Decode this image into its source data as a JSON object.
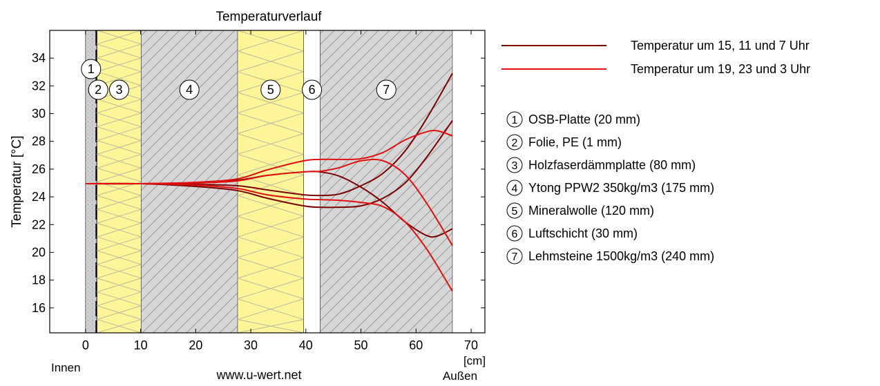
{
  "chart_data": {
    "type": "line",
    "title": "Temperaturverlauf",
    "ylabel": "Temperatur [°C]",
    "xunit": "[cm]",
    "xlim": [
      -6.5,
      72.5
    ],
    "ylim": [
      14.2,
      36
    ],
    "xticks": [
      0,
      10,
      20,
      30,
      40,
      50,
      60,
      70
    ],
    "yticks": [
      16,
      18,
      20,
      22,
      24,
      26,
      28,
      30,
      32,
      34
    ],
    "inside_label": "Innen",
    "outside_label": "Außen",
    "footer": "www.u-wert.net",
    "layers": [
      {
        "num": "1",
        "name": "OSB-Platte (20 mm)",
        "x0": 0,
        "x1": 2,
        "material": "osb"
      },
      {
        "num": "2",
        "name": "Folie, PE (1 mm)",
        "x0": 2,
        "x1": 2.1,
        "material": "foil"
      },
      {
        "num": "3",
        "name": "Holzfaserdämmplatte (80 mm)",
        "x0": 2.1,
        "x1": 10.1,
        "material": "insulation"
      },
      {
        "num": "4",
        "name": "Ytong PPW2 350kg/m3 (175 mm)",
        "x0": 10.1,
        "x1": 27.6,
        "material": "masonry"
      },
      {
        "num": "5",
        "name": "Mineralwolle (120 mm)",
        "x0": 27.6,
        "x1": 39.6,
        "material": "insulation"
      },
      {
        "num": "6",
        "name": "Luftschicht (30 mm)",
        "x0": 39.6,
        "x1": 42.6,
        "material": "air"
      },
      {
        "num": "7",
        "name": "Lehmsteine 1500kg/m3 (240 mm)",
        "x0": 42.6,
        "x1": 66.6,
        "material": "masonry"
      }
    ],
    "legend": [
      {
        "label": "Temperatur um 15, 11 und 7 Uhr",
        "color": "#7a0000"
      },
      {
        "label": "Temperatur um 19, 23 und 3 Uhr",
        "color": "#e01010"
      }
    ],
    "series": [
      {
        "group": 0,
        "color": "#7a0000",
        "x": [
          0,
          10,
          20,
          27.6,
          33,
          39.6,
          42.6,
          46,
          50,
          54,
          58,
          62,
          66.6
        ],
        "y": [
          24.95,
          24.95,
          24.9,
          24.8,
          24.5,
          24.15,
          24.1,
          24.2,
          24.8,
          25.7,
          27.3,
          29.7,
          32.9
        ]
      },
      {
        "group": 0,
        "color": "#7a0000",
        "x": [
          0,
          10,
          20,
          27.6,
          33,
          39.6,
          42.6,
          46,
          50,
          54,
          58,
          62,
          66.6
        ],
        "y": [
          24.95,
          24.95,
          24.75,
          24.45,
          23.9,
          23.35,
          23.25,
          23.25,
          23.35,
          23.9,
          25.0,
          26.9,
          29.5
        ]
      },
      {
        "group": 0,
        "color": "#7a0000",
        "x": [
          0,
          10,
          20,
          27.6,
          33,
          39.6,
          42.6,
          46,
          50,
          54,
          58,
          62,
          64,
          66.6
        ],
        "y": [
          24.95,
          24.95,
          25.0,
          25.2,
          25.55,
          25.8,
          25.8,
          25.5,
          24.7,
          23.6,
          22.2,
          21.2,
          21.2,
          21.7
        ]
      },
      {
        "group": 1,
        "color": "#e01010",
        "x": [
          0,
          10,
          20,
          27.6,
          33,
          39.6,
          42.6,
          46,
          50,
          54,
          58,
          62,
          64,
          66.6
        ],
        "y": [
          24.95,
          24.95,
          25.05,
          25.3,
          25.95,
          26.6,
          26.7,
          26.7,
          26.75,
          27.2,
          28.1,
          28.7,
          28.75,
          28.4
        ]
      },
      {
        "group": 1,
        "color": "#e01010",
        "x": [
          0,
          10,
          20,
          27.6,
          33,
          39.6,
          42.6,
          46,
          50,
          54,
          58,
          62,
          66.6
        ],
        "y": [
          24.95,
          24.95,
          25.0,
          25.15,
          25.55,
          25.8,
          25.85,
          26.1,
          26.6,
          26.6,
          25.6,
          23.5,
          20.5
        ]
      },
      {
        "group": 1,
        "color": "#e01010",
        "x": [
          0,
          10,
          20,
          27.6,
          33,
          39.6,
          42.6,
          46,
          50,
          54,
          58,
          62,
          66.6
        ],
        "y": [
          24.95,
          24.95,
          24.85,
          24.6,
          24.15,
          23.85,
          23.8,
          23.75,
          23.6,
          23.3,
          22.2,
          20.2,
          17.2
        ]
      }
    ]
  }
}
